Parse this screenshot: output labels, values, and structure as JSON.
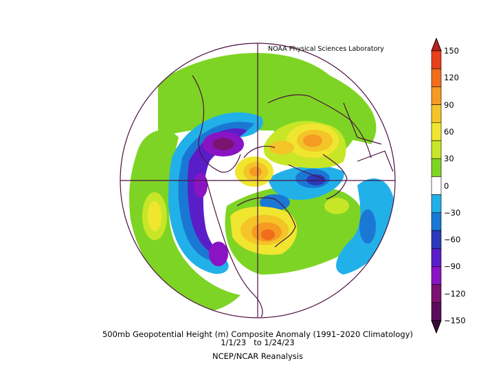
{
  "credit": "NOAA Physical Sciences Laboratory",
  "caption": {
    "line1": "500mb Geopotential Height (m) Composite Anomaly (1991–2020 Climatology)",
    "line2": "1/1/23   to 1/24/23",
    "line3": "NCEP/NCAR Reanalysis"
  },
  "colorbar": {
    "labels": [
      "150",
      "120",
      "90",
      "60",
      "30",
      "0",
      "−30",
      "−60",
      "−90",
      "−120",
      "−150"
    ],
    "colors": [
      "#e8401a",
      "#f06d1c",
      "#f59a22",
      "#f4c428",
      "#f0e630",
      "#c8e628",
      "#7ed424",
      "#ffffff",
      "#22b0e8",
      "#1a78d4",
      "#2a3ab8",
      "#5a1ec8",
      "#8a14c4",
      "#7a1470",
      "#5a0e5a"
    ]
  }
}
